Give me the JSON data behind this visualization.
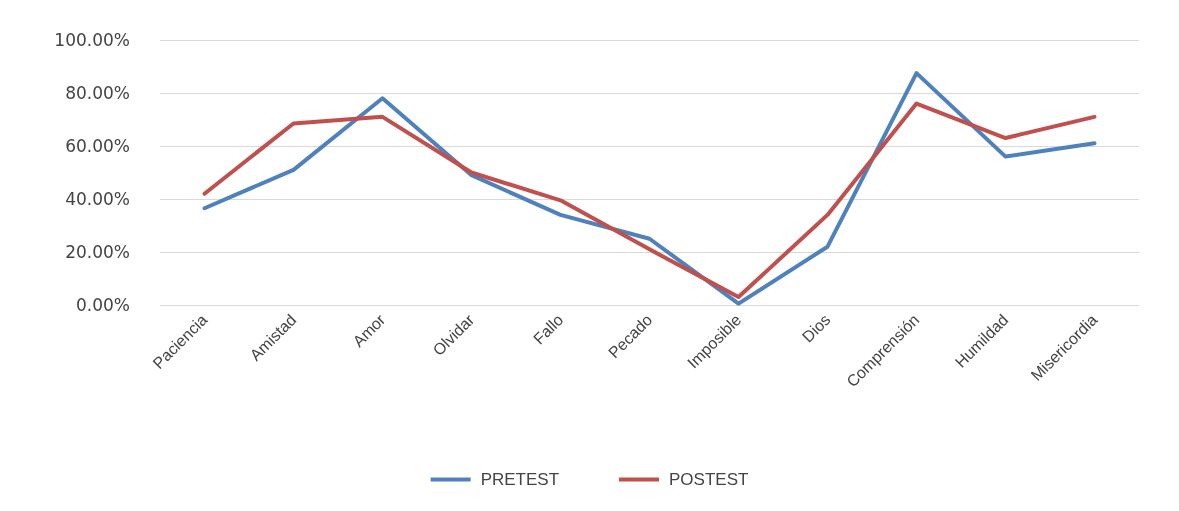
{
  "chart_data": {
    "type": "line",
    "categories": [
      "Paciencia",
      "Amistad",
      "Amor",
      "Olvidar",
      "Fallo",
      "Pecado",
      "Imposible",
      "Dios",
      "Comprensión",
      "Humildad",
      "Misericordia"
    ],
    "series": [
      {
        "name": "PRETEST",
        "color": "#4f81bd",
        "values": [
          36.5,
          51,
          78,
          49,
          34,
          25,
          0.5,
          22,
          87.5,
          56,
          61
        ]
      },
      {
        "name": "POSTEST",
        "color": "#c0504d",
        "values": [
          42,
          68.5,
          71,
          50,
          39.5,
          21,
          3,
          34,
          76,
          63,
          71
        ]
      }
    ],
    "ylim": [
      0,
      100
    ],
    "yticks": [
      {
        "value": 0,
        "label": "0.00%"
      },
      {
        "value": 20,
        "label": "20.00%"
      },
      {
        "value": 40,
        "label": "40.00%"
      },
      {
        "value": 60,
        "label": "60.00%"
      },
      {
        "value": 80,
        "label": "80.00%"
      },
      {
        "value": 100,
        "label": "100.00%"
      }
    ],
    "grid": "y",
    "legend": "bottom",
    "marker": "none",
    "line_style": "solid"
  }
}
